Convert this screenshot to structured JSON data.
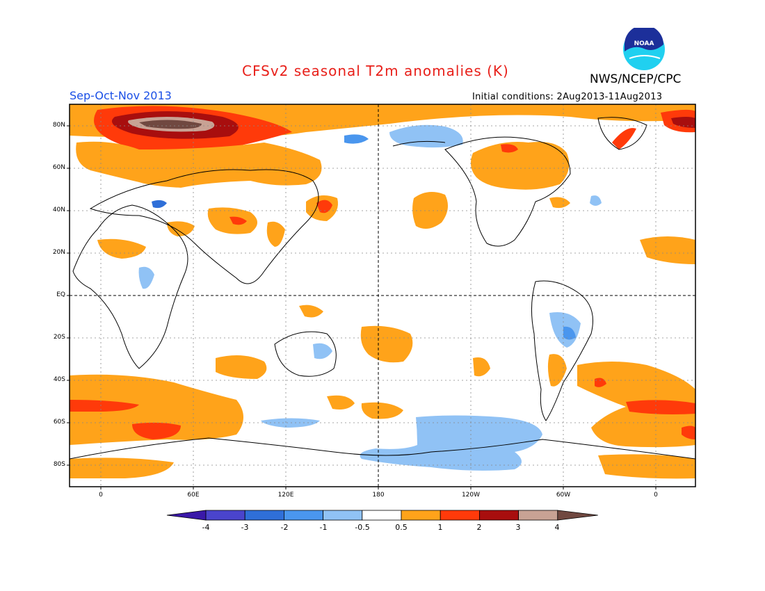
{
  "header": {
    "title": "CFSv2 seasonal T2m anomalies (K)",
    "agency": "NWS/NCEP/CPC",
    "season": "Sep-Oct-Nov 2013",
    "initial_conditions": "Initial conditions: 2Aug2013-11Aug2013",
    "logo_text": "NOAA"
  },
  "axes": {
    "lat_labels": [
      "80N",
      "60N",
      "40N",
      "20N",
      "EQ",
      "20S",
      "40S",
      "60S",
      "80S"
    ],
    "lon_labels": [
      "0",
      "60E",
      "120E",
      "180",
      "120W",
      "60W",
      "0"
    ]
  },
  "colorbar": {
    "labels": [
      "-4",
      "-3",
      "-2",
      "-1",
      "-0.5",
      "0.5",
      "1",
      "2",
      "3",
      "4"
    ],
    "colors": [
      "#3a18a8",
      "#4a44cc",
      "#2f6fd8",
      "#4a96ee",
      "#90c2f5",
      "#ffffff",
      "#ffa31a",
      "#ff3a0a",
      "#a80e0e",
      "#c8a294",
      "#704840"
    ]
  }
}
